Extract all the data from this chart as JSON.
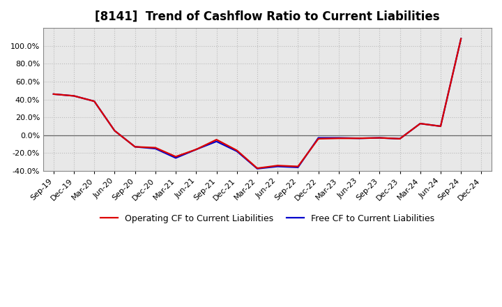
{
  "title": "[8141]  Trend of Cashflow Ratio to Current Liabilities",
  "x_labels": [
    "Sep-19",
    "Dec-19",
    "Mar-20",
    "Jun-20",
    "Sep-20",
    "Dec-20",
    "Mar-21",
    "Jun-21",
    "Sep-21",
    "Dec-21",
    "Mar-22",
    "Jun-22",
    "Sep-22",
    "Dec-22",
    "Mar-23",
    "Jun-23",
    "Sep-23",
    "Dec-23",
    "Mar-24",
    "Jun-24",
    "Sep-24",
    "Dec-24"
  ],
  "operating_cf": [
    46.0,
    44.0,
    38.0,
    5.0,
    -13.0,
    -14.0,
    -24.0,
    -16.0,
    -5.0,
    -17.0,
    -37.0,
    -34.0,
    -35.0,
    -4.0,
    -3.5,
    -3.5,
    -3.0,
    -4.0,
    13.0,
    10.0,
    108.0,
    null
  ],
  "free_cf": [
    46.0,
    44.0,
    38.0,
    5.0,
    -13.0,
    -15.0,
    -25.5,
    -16.0,
    -7.0,
    -18.0,
    -37.5,
    -35.0,
    -36.0,
    -3.0,
    -3.0,
    -3.5,
    -3.0,
    -4.0,
    13.0,
    10.0,
    108.0,
    null
  ],
  "operating_color": "#dd0000",
  "free_color": "#0000cc",
  "ylim": [
    -40.0,
    120.0
  ],
  "yticks": [
    -40.0,
    -20.0,
    0.0,
    20.0,
    40.0,
    60.0,
    80.0,
    100.0
  ],
  "legend_labels": [
    "Operating CF to Current Liabilities",
    "Free CF to Current Liabilities"
  ],
  "background_color": "#ffffff",
  "plot_bg_color": "#e8e8e8",
  "grid_color": "#bbbbbb",
  "title_fontsize": 12,
  "axis_fontsize": 8,
  "legend_fontsize": 9,
  "line_width": 1.6
}
